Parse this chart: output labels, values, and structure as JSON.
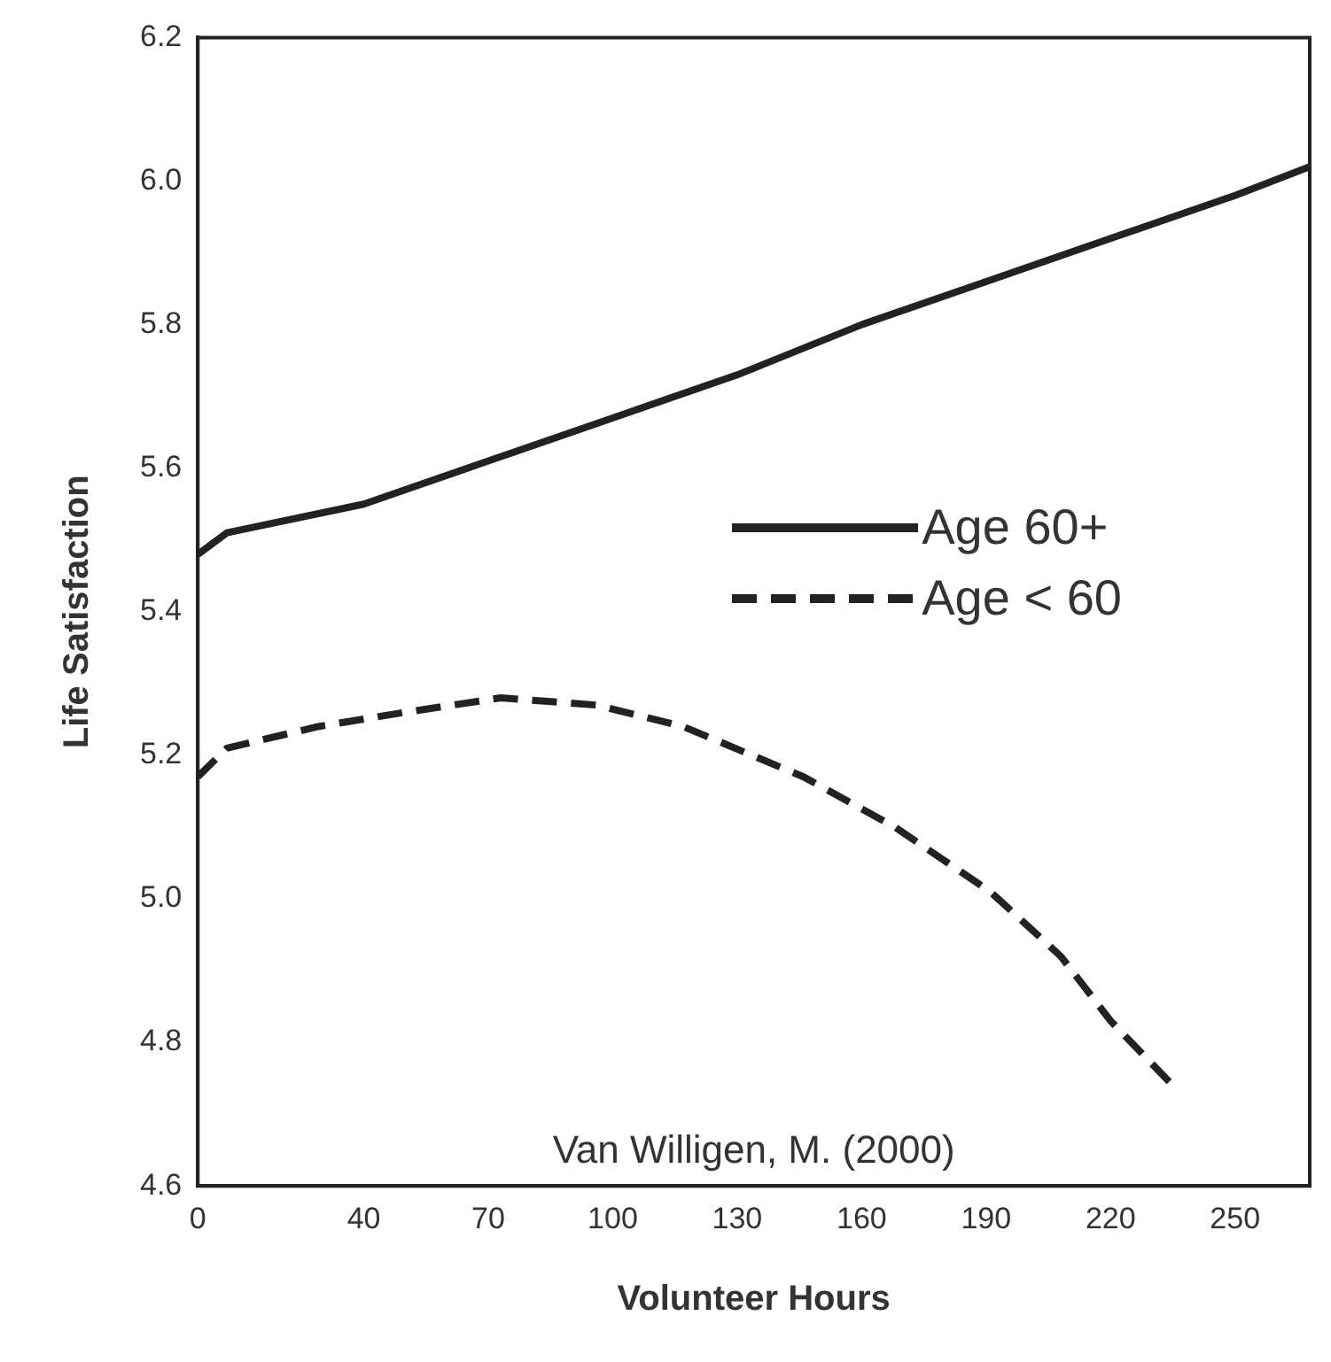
{
  "chart_data": {
    "type": "line",
    "xlabel": "Volunteer Hours",
    "ylabel": "Life Satisfaction",
    "annotations": [
      "Van Willigen, M. (2000)"
    ],
    "xlim": [
      0,
      268
    ],
    "xticks": [
      0,
      40,
      70,
      100,
      130,
      160,
      190,
      220,
      250
    ],
    "ylim": [
      4.6,
      6.2
    ],
    "yticks": [
      4.6,
      4.8,
      {
        "value": 5,
        "label": "5.0"
      },
      5.2,
      5.4,
      5.6,
      5.8,
      {
        "value": 6,
        "label": "6.0"
      },
      6.2
    ],
    "grid": false,
    "legend": "right",
    "marker": "none",
    "series": [
      {
        "name": "Age 60+",
        "color": "#222222",
        "line_style": "solid",
        "x": [
          0,
          7,
          40,
          70,
          100,
          130,
          160,
          190,
          220,
          250,
          268
        ],
        "values": [
          5.48,
          5.51,
          5.55,
          5.61,
          5.67,
          5.73,
          5.8,
          5.86,
          5.92,
          5.98,
          6.02
        ]
      },
      {
        "name": "Age < 60",
        "color": "#222222",
        "line_style": "dashed",
        "x": [
          0,
          7,
          29,
          50,
          73,
          96,
          117,
          146,
          168,
          191,
          208,
          220,
          235
        ],
        "values": [
          5.17,
          5.21,
          5.24,
          5.26,
          5.28,
          5.27,
          5.24,
          5.17,
          5.1,
          5.01,
          4.92,
          4.83,
          4.74
        ]
      }
    ]
  }
}
